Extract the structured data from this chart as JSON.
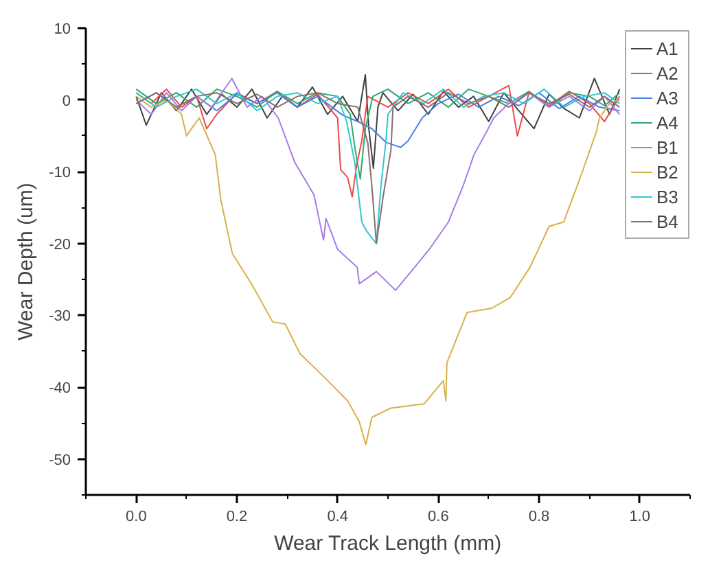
{
  "chart_data": {
    "type": "line",
    "xlabel": "Wear Track Length (mm)",
    "ylabel": "Wear Depth (um)",
    "xlim": [
      -0.1,
      1.1
    ],
    "ylim": [
      -55,
      10
    ],
    "xticks": [
      {
        "value": 0,
        "label": "0.0"
      },
      {
        "value": 0.2,
        "label": "0.2"
      },
      {
        "value": 0.4,
        "label": "0.4"
      },
      {
        "value": 0.6,
        "label": "0.6"
      },
      {
        "value": 0.8,
        "label": "0.8"
      },
      {
        "value": 1,
        "label": "1.0"
      }
    ],
    "yticks": [
      -50,
      -40,
      -30,
      -20,
      -10,
      0,
      10
    ],
    "grid": false,
    "legend": "top right",
    "marker": "none",
    "line_style": "solid",
    "series": [
      {
        "name": "A1",
        "color": "#404040",
        "x": [
          0,
          0.02,
          0.05,
          0.08,
          0.11,
          0.14,
          0.17,
          0.2,
          0.23,
          0.26,
          0.29,
          0.32,
          0.35,
          0.38,
          0.41,
          0.44,
          0.455,
          0.462,
          0.471,
          0.48,
          0.49,
          0.52,
          0.55,
          0.58,
          0.61,
          0.64,
          0.67,
          0.7,
          0.73,
          0.76,
          0.79,
          0.82,
          0.85,
          0.88,
          0.91,
          0.94,
          0.96
        ],
        "values": [
          0.5,
          -3.5,
          1,
          -1.5,
          1.5,
          -2,
          0.8,
          -1,
          1.5,
          -2.5,
          0.5,
          -1,
          1.8,
          -2,
          0.5,
          -3,
          3.5,
          -4,
          -9.5,
          -1,
          1,
          -1.5,
          0.8,
          -2,
          1.2,
          -1,
          0.5,
          -3,
          1,
          -1.5,
          -4,
          0.8,
          -1.2,
          -2.5,
          3,
          -2,
          1.5
        ]
      },
      {
        "name": "A2",
        "color": "#f04848",
        "x": [
          0,
          0.03,
          0.06,
          0.09,
          0.12,
          0.14,
          0.16,
          0.2,
          0.24,
          0.28,
          0.32,
          0.36,
          0.4,
          0.406,
          0.42,
          0.429,
          0.438,
          0.448,
          0.46,
          0.5,
          0.54,
          0.58,
          0.62,
          0.66,
          0.7,
          0.74,
          0.757,
          0.78,
          0.82,
          0.86,
          0.9,
          0.93,
          0.96
        ],
        "values": [
          1,
          -0.5,
          1.5,
          -1,
          0.5,
          -4,
          -2,
          1,
          -0.5,
          1.2,
          -1,
          0.8,
          -2.5,
          -9.7,
          -10.8,
          -13.5,
          -9,
          -5.7,
          0.5,
          -1,
          1,
          -0.5,
          1.5,
          -1,
          0.5,
          2,
          -5,
          1,
          -0.8,
          1.2,
          -0.5,
          -3,
          0.5
        ]
      },
      {
        "name": "A3",
        "color": "#4a7ee8",
        "x": [
          0,
          0.04,
          0.08,
          0.12,
          0.16,
          0.2,
          0.24,
          0.28,
          0.32,
          0.36,
          0.41,
          0.44,
          0.468,
          0.496,
          0.525,
          0.54,
          0.568,
          0.6,
          0.64,
          0.68,
          0.72,
          0.76,
          0.8,
          0.84,
          0.88,
          0.92,
          0.96
        ],
        "values": [
          -0.5,
          1,
          -1,
          0.5,
          -1.5,
          0.8,
          -0.5,
          1,
          -1,
          0.5,
          -2.1,
          -3,
          -4,
          -5.9,
          -6.6,
          -5.7,
          -2.5,
          -0.5,
          0.8,
          -1,
          0.5,
          -0.8,
          1,
          -1.2,
          0.5,
          -1,
          -1.5
        ]
      },
      {
        "name": "A4",
        "color": "#2ea86a",
        "x": [
          0,
          0.04,
          0.08,
          0.12,
          0.16,
          0.2,
          0.24,
          0.28,
          0.32,
          0.36,
          0.4,
          0.425,
          0.435,
          0.445,
          0.455,
          0.47,
          0.5,
          0.54,
          0.58,
          0.62,
          0.66,
          0.7,
          0.74,
          0.78,
          0.82,
          0.86,
          0.9,
          0.93,
          0.96
        ],
        "values": [
          1.5,
          -0.5,
          1,
          -1,
          1.5,
          0.5,
          -1,
          1.2,
          -0.5,
          1,
          0.5,
          -2,
          -7,
          -11,
          -4,
          0.5,
          1.5,
          -0.5,
          1,
          -1,
          1.5,
          0.5,
          -0.5,
          1.2,
          -1,
          1,
          0.5,
          -0.8,
          1
        ]
      },
      {
        "name": "B1",
        "color": "#a57ce8",
        "x": [
          0,
          0.03,
          0.06,
          0.09,
          0.12,
          0.15,
          0.19,
          0.22,
          0.25,
          0.282,
          0.315,
          0.353,
          0.372,
          0.377,
          0.4,
          0.439,
          0.443,
          0.477,
          0.515,
          0.553,
          0.582,
          0.62,
          0.649,
          0.671,
          0.696,
          0.71,
          0.74,
          0.78,
          0.82,
          0.86,
          0.9,
          0.93,
          0.96
        ],
        "values": [
          0,
          -2,
          1,
          -1.5,
          0.5,
          -1,
          3,
          -1,
          0.5,
          -2.5,
          -8.7,
          -13.2,
          -19.5,
          -16.5,
          -20.8,
          -23.3,
          -25.6,
          -23.9,
          -26.5,
          -23.3,
          -20.8,
          -17,
          -12,
          -7.6,
          -4.4,
          -2.5,
          -0.5,
          1,
          -1,
          0.5,
          -1.5,
          0.5,
          -2
        ]
      },
      {
        "name": "B2",
        "color": "#d8b04a",
        "x": [
          0,
          0.03,
          0.06,
          0.09,
          0.1,
          0.125,
          0.157,
          0.168,
          0.191,
          0.229,
          0.271,
          0.296,
          0.325,
          0.372,
          0.42,
          0.443,
          0.456,
          0.468,
          0.506,
          0.572,
          0.61,
          0.615,
          0.617,
          0.657,
          0.706,
          0.743,
          0.782,
          0.82,
          0.849,
          0.886,
          0.914,
          0.92,
          0.94,
          0.96
        ],
        "values": [
          0.5,
          -1,
          0,
          -2,
          -5,
          -2.5,
          -7.6,
          -13.9,
          -21.4,
          -25.6,
          -30.9,
          -31.2,
          -35.3,
          -38.5,
          -41.9,
          -44.8,
          -48,
          -44.2,
          -42.9,
          -42.3,
          -39.1,
          -41.9,
          -36.6,
          -29.6,
          -29,
          -27.5,
          -23.3,
          -17.6,
          -17,
          -10,
          -4.4,
          -2.5,
          -0.5,
          0
        ]
      },
      {
        "name": "B3",
        "color": "#2cc8d0",
        "x": [
          0,
          0.04,
          0.08,
          0.12,
          0.16,
          0.2,
          0.24,
          0.28,
          0.32,
          0.36,
          0.4,
          0.418,
          0.434,
          0.448,
          0.458,
          0.477,
          0.486,
          0.496,
          0.5,
          0.53,
          0.57,
          0.61,
          0.65,
          0.69,
          0.73,
          0.77,
          0.81,
          0.85,
          0.89,
          0.93,
          0.96
        ],
        "values": [
          1,
          -1,
          0.5,
          1.5,
          -0.5,
          1,
          -1.5,
          0.5,
          1,
          -0.5,
          0.5,
          -3,
          -8.7,
          -17,
          -18.3,
          -20,
          -12,
          -5.7,
          -2,
          1,
          -0.5,
          1.5,
          -1,
          0.5,
          1,
          -0.5,
          1.5,
          -1,
          0.5,
          1,
          -0.5
        ]
      },
      {
        "name": "B4",
        "color": "#8a6e6e",
        "x": [
          0,
          0.04,
          0.08,
          0.12,
          0.16,
          0.2,
          0.24,
          0.28,
          0.32,
          0.36,
          0.4,
          0.44,
          0.46,
          0.468,
          0.477,
          0.491,
          0.506,
          0.51,
          0.54,
          0.58,
          0.62,
          0.66,
          0.7,
          0.74,
          0.78,
          0.82,
          0.86,
          0.9,
          0.93,
          0.96
        ],
        "values": [
          -0.5,
          1,
          -1,
          0.5,
          1,
          -0.5,
          0.8,
          -1,
          0.5,
          1,
          -0.5,
          -1,
          -6,
          -12,
          -20,
          -13.2,
          -6.9,
          -1,
          0.5,
          -1,
          1,
          -0.5,
          0.5,
          -1,
          1,
          -0.5,
          0.8,
          -1,
          0.5,
          -1
        ]
      }
    ]
  }
}
